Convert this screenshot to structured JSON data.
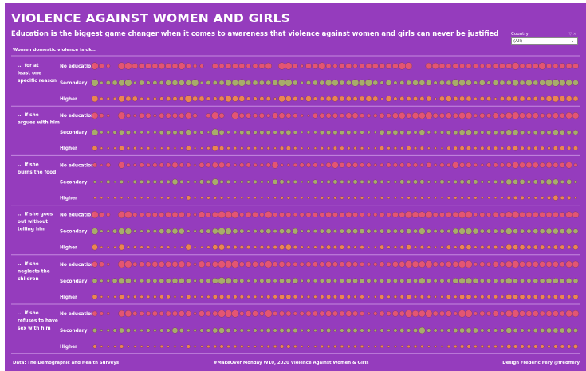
{
  "header": {
    "title": "VIOLENCE AGAINST WOMEN AND GIRLS",
    "subtitle": "Education is the biggest game changer when it comes to awareness that violence against women and girls can never be justified",
    "section_label": "Women domestic violence is ok..."
  },
  "filter": {
    "label": "Country",
    "value": "(All)",
    "tools": "▽ ×"
  },
  "footer": {
    "left": "Data: The Demographic and Health Surveys",
    "center": "#MakeOver Monday W10, 2020 Violence Against Women & Girls",
    "right": "Design Frederic Fery @fredffery"
  },
  "colors": {
    "background": "#953cbd",
    "no_education": "#e8566f",
    "secondary": "#a9b266",
    "higher": "#f08a4b",
    "divider": "#c58ae0",
    "dot_stroke": "#7a3a6a"
  },
  "chart_data": {
    "type": "scatter",
    "title": "Women domestic violence is ok...",
    "encoding": "bubble size = share of women agreeing (relative scale 0-9), one column per country",
    "series_keys": [
      "No education",
      "Secondary",
      "Higher"
    ],
    "groups": [
      {
        "label": "... for at least one specific reason",
        "rows": [
          {
            "education": "No education",
            "values": "9640997777877964407677756780996377965775677777990088767666567779677966777"
          },
          {
            "education": "Secondary",
            "values": "9356893645577779355688966667996356688669896474567774669874747668686799887"
          },
          {
            "education": "Higher",
            "values": "8333866333455596644687744552875474567665676274555562675663552566655578776"
          }
        ]
      },
      {
        "label": "... if she argues with him",
        "rows": [
          {
            "education": "No education",
            "values": "8530953663666685059609665647765326666577544657868896676884657689777567688"
          },
          {
            "education": "Secondary",
            "values": "8334653333555574429633554554564233555554432656554733455775455577545557656"
          },
          {
            "education": "Higher",
            "values": "6222633232232262237533333332453222334433322533353422244553444356444435545"
          }
        ]
      },
      {
        "label": "... if she burns the food",
        "rows": [
          {
            "education": "No education",
            "values": "5250843545557552657753554458334555468666553455555463548664355568777676684"
          },
          {
            "education": "Secondary",
            "values": "3242424444447433548443334336544235345445445433545533534555334476645577463"
          },
          {
            "education": "Higher",
            "values": "2222222222232252233322222222332222333333322322233322233333222244433346442"
          }
        ]
      },
      {
        "label": "... if she goes out without telling him",
        "rows": [
          {
            "education": "No education",
            "values": "9640995566677753867999577595664566676676544657798896677994657689777777688"
          },
          {
            "education": "Secondary",
            "values": "8335883344667733557986534564667344564566654555565854547887555586556677676"
          },
          {
            "education": "Higher",
            "values": "7222733332332272236744443444674333454543422533463432353663444376655545546"
          }
        ]
      },
      {
        "label": "... if she neglects the children",
        "rows": [
          {
            "education": "No education",
            "values": "7630995667777863867999677696765566676676544657798896677994657689777777688"
          },
          {
            "education": "Secondary",
            "values": "6336873455667763557986534564667344564566654555565854547887555586556677676"
          },
          {
            "education": "Higher",
            "values": "6222633333442253235544433344664333454543422533463432353663444376655545546"
          }
        ]
      },
      {
        "label": "... if she refuses to have sex with him",
        "rows": [
          {
            "education": "No education",
            "values": "6430885556566773766999577595664566676676534657698896674994657589777677688"
          },
          {
            "education": "Secondary",
            "values": "5234653343447533446754434454555343453455443434545844445666444475445566665"
          },
          {
            "education": "Higher",
            "values": "4222422222322242233433322333443222333333322322233322233443333354444434445"
          }
        ]
      }
    ]
  }
}
